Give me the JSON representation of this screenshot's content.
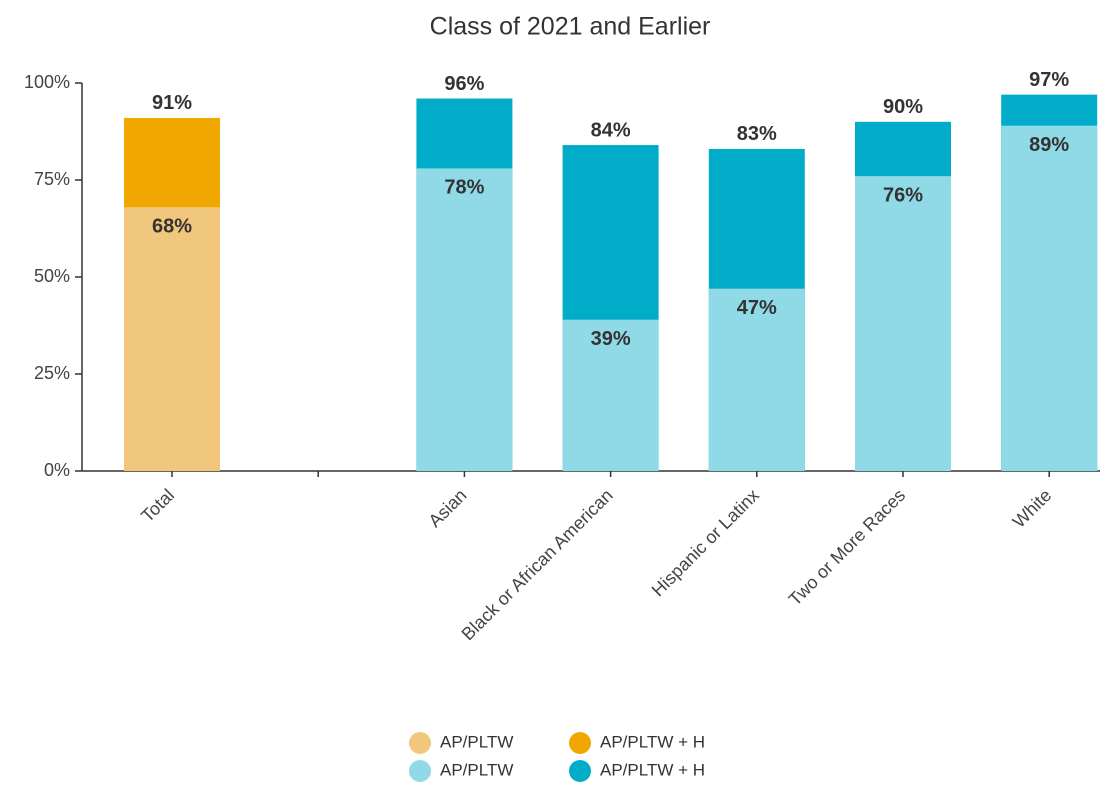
{
  "chart_data": {
    "type": "bar",
    "barmode": "overlay",
    "title": "Class of 2021 and Earlier",
    "categories": [
      "Total",
      null,
      "Asian",
      "Black or African American",
      "Hispanic or Latinx",
      "Two or More Races",
      "White"
    ],
    "series": [
      {
        "name": "AP/PLTW",
        "color": "#f0c77c",
        "values": [
          68,
          null,
          null,
          null,
          null,
          null,
          null
        ],
        "value_labels": [
          "68%",
          null,
          null,
          null,
          null,
          null,
          null
        ]
      },
      {
        "name": "AP/PLTW + H",
        "color": "#f0a800",
        "values": [
          91,
          null,
          null,
          null,
          null,
          null,
          null
        ],
        "value_labels": [
          "91%",
          null,
          null,
          null,
          null,
          null,
          null
        ]
      },
      {
        "name": "AP/PLTW",
        "color": "#90d9e6",
        "values": [
          null,
          null,
          78,
          39,
          47,
          76,
          89
        ],
        "value_labels": [
          null,
          null,
          "78%",
          "39%",
          "47%",
          "76%",
          "89%"
        ]
      },
      {
        "name": "AP/PLTW + H",
        "color": "#00acc8",
        "values": [
          null,
          null,
          96,
          84,
          83,
          90,
          97
        ],
        "value_labels": [
          null,
          null,
          "96%",
          "84%",
          "83%",
          "90%",
          "97%"
        ]
      }
    ],
    "ylim": [
      0,
      100
    ],
    "yticks": [
      {
        "value": 0,
        "label": "0%"
      },
      {
        "value": 25,
        "label": "25%"
      },
      {
        "value": 50,
        "label": "50%"
      },
      {
        "value": 75,
        "label": "75%"
      },
      {
        "value": 100,
        "label": "100%"
      }
    ],
    "grid": false,
    "legend": "bottom"
  }
}
